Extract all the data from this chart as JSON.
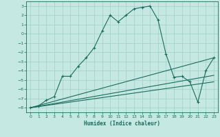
{
  "xlabel": "Humidex (Indice chaleur)",
  "bg_color": "#c5e8e2",
  "grid_color": "#9ecfc8",
  "line_color": "#1a6b5a",
  "xlim": [
    -0.5,
    23.5
  ],
  "ylim": [
    -8.5,
    3.5
  ],
  "xticks": [
    0,
    1,
    2,
    3,
    4,
    5,
    6,
    7,
    8,
    9,
    10,
    11,
    12,
    13,
    14,
    15,
    16,
    17,
    18,
    19,
    20,
    21,
    22,
    23
  ],
  "yticks": [
    3,
    2,
    1,
    0,
    -1,
    -2,
    -3,
    -4,
    -5,
    -6,
    -7,
    -8
  ],
  "main_x": [
    0,
    1,
    2,
    3,
    4,
    5,
    6,
    7,
    8,
    9,
    10,
    11,
    12,
    13,
    14,
    15,
    16,
    17,
    18,
    19,
    20,
    21,
    22,
    23
  ],
  "main_y": [
    -8,
    -7.8,
    -7.2,
    -6.8,
    -4.6,
    -4.6,
    -3.5,
    -2.6,
    -1.5,
    0.3,
    2.0,
    1.3,
    2.0,
    2.7,
    2.85,
    3.0,
    1.5,
    -2.2,
    -4.7,
    -4.6,
    -5.2,
    -7.4,
    -4.0,
    -2.6
  ],
  "line1_x": [
    0,
    23
  ],
  "line1_y": [
    -8.0,
    -2.6
  ],
  "line2_x": [
    0,
    23
  ],
  "line2_y": [
    -8.0,
    -4.5
  ],
  "line3_x": [
    0,
    23
  ],
  "line3_y": [
    -8.0,
    -5.2
  ]
}
